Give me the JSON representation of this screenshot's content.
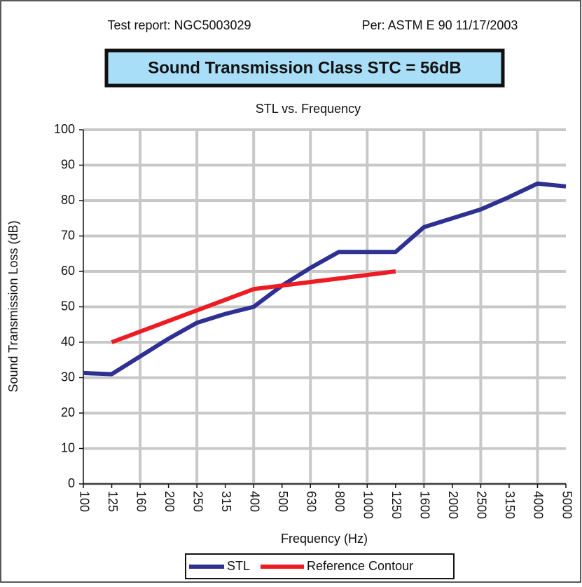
{
  "chart_data": {
    "type": "line",
    "annotations": [
      "Test report: NGC5003029",
      "Per: ASTM E 90 11/17/2003"
    ],
    "title": "Sound Transmission Class STC = 56dB",
    "subtitle": "STL vs. Frequency",
    "x_label": "Frequency (Hz)",
    "y_label": "Sound Transmission Loss (dB)",
    "categories": [
      "100",
      "125",
      "160",
      "200",
      "250",
      "315",
      "400",
      "500",
      "630",
      "800",
      "1000",
      "1250",
      "1600",
      "2000",
      "2500",
      "3150",
      "4000",
      "5000"
    ],
    "series": [
      {
        "name": "STL",
        "color": "#2e3192",
        "values": [
          31.3,
          31,
          36,
          41,
          45.5,
          48,
          50,
          56,
          61,
          65.5,
          65.5,
          65.5,
          72.5,
          75,
          77.5,
          81,
          84.8,
          84
        ]
      },
      {
        "name": "Reference Contour",
        "color": "#ed1c24",
        "values": [
          null,
          40,
          43,
          46,
          49,
          52,
          55,
          56,
          57,
          58,
          59,
          60,
          null,
          null,
          null,
          null,
          null,
          null
        ]
      }
    ],
    "ylim": [
      0,
      100
    ],
    "yticks": [
      0,
      10,
      20,
      30,
      40,
      50,
      60,
      70,
      80,
      90,
      100
    ],
    "grid": true,
    "legend": "bottom"
  }
}
